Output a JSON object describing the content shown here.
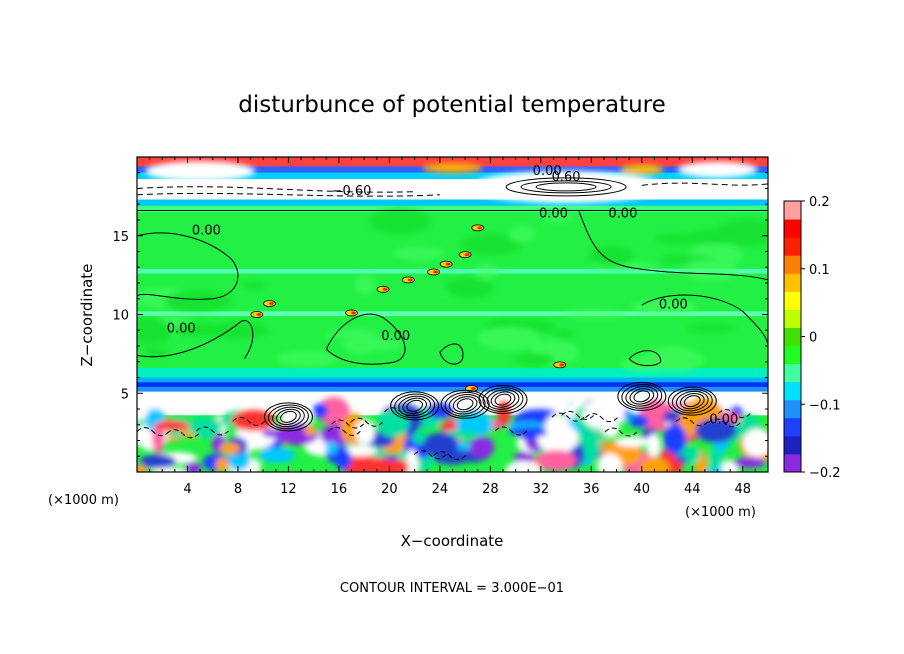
{
  "chart_data": {
    "type": "heatmap",
    "title": "disturbunce of potential temperature",
    "xlabel": "X−coordinate",
    "ylabel": "Z−coordinate",
    "x_unit": "(×1000 m)",
    "y_unit": "(×1000 m)",
    "xlim": [
      0,
      50
    ],
    "ylim": [
      0,
      20
    ],
    "x_ticks": [
      4,
      8,
      12,
      16,
      20,
      24,
      28,
      32,
      36,
      40,
      44,
      48
    ],
    "y_ticks": [
      5,
      10,
      15
    ],
    "colorbar": {
      "range": [
        -0.2,
        0.2
      ],
      "ticks": [
        {
          "value": 0.2,
          "label": "0.2"
        },
        {
          "value": 0.1,
          "label": "0.1"
        },
        {
          "value": 0,
          "label": "0"
        },
        {
          "value": -0.1,
          "label": "−0.1"
        },
        {
          "value": -0.2,
          "label": "−0.2"
        }
      ],
      "colors": [
        "#8a2be2",
        "#2020c0",
        "#1e40ff",
        "#1e90ff",
        "#00e0ff",
        "#40ffa0",
        "#20ff20",
        "#40e000",
        "#c0ff00",
        "#ffff00",
        "#ffc000",
        "#ff8000",
        "#ff2000",
        "#ff0000",
        "#ffa0a0"
      ]
    },
    "contour_labels": [
      {
        "x": 32.5,
        "z": 19.0,
        "text": "0.00"
      },
      {
        "x": 34.0,
        "z": 18.6,
        "text": "0.60"
      },
      {
        "x": 17.0,
        "z": 17.7,
        "text": "−0.60"
      },
      {
        "x": 33.0,
        "z": 16.3,
        "text": "0.00"
      },
      {
        "x": 38.5,
        "z": 16.3,
        "text": "0.00"
      },
      {
        "x": 5.5,
        "z": 15.2,
        "text": "0.00"
      },
      {
        "x": 3.5,
        "z": 9.0,
        "text": "0.00"
      },
      {
        "x": 20.5,
        "z": 8.5,
        "text": "0.00"
      },
      {
        "x": 42.5,
        "z": 10.5,
        "text": "0.00"
      },
      {
        "x": 46.5,
        "z": 3.2,
        "text": "0.00"
      }
    ],
    "footer": "CONTOUR INTERVAL = 3.000E−01"
  }
}
